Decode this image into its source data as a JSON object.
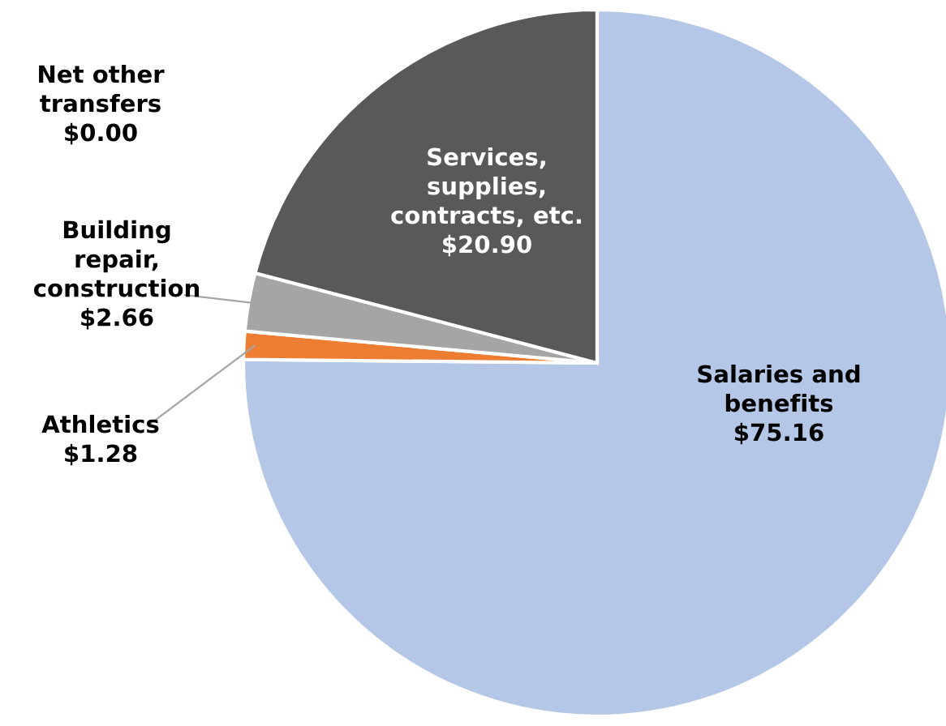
{
  "chart_data": {
    "type": "pie",
    "categories": [
      "Salaries and\nbenefits",
      "Athletics",
      "Building\nrepair,\nconstruction",
      "Services,\nsupplies,\ncontracts, etc.",
      "Net other\ntransfers"
    ],
    "values": [
      75.16,
      1.28,
      2.66,
      20.9,
      0.0
    ],
    "value_labels": [
      "$75.16",
      "$1.28",
      "$2.66",
      "$20.90",
      "$0.00"
    ],
    "colors": [
      "#b4c7e7",
      "#ed7d31",
      "#a5a5a5",
      "#595959",
      "#ffc000"
    ],
    "legend": false
  }
}
